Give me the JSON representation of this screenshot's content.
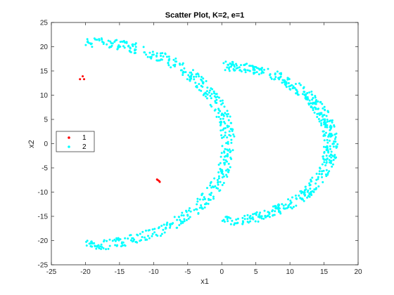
{
  "chart_data": {
    "type": "scatter",
    "title": "Scatter Plot, K=2, e=1",
    "xlabel": "x1",
    "ylabel": "x2",
    "xlim": [
      -25,
      20
    ],
    "ylim": [
      -25,
      25
    ],
    "xticks": [
      -25,
      -20,
      -15,
      -10,
      -5,
      0,
      5,
      10,
      15,
      20
    ],
    "yticks": [
      -25,
      -20,
      -15,
      -10,
      -5,
      0,
      5,
      10,
      15,
      20,
      25
    ],
    "grid": false,
    "legend_position": "left",
    "series": [
      {
        "name": "1",
        "color": "#ff0000",
        "points": [
          [
            -20.4,
            13.9
          ],
          [
            -20.8,
            13.3
          ],
          [
            -20.2,
            13.3
          ],
          [
            -9.4,
            -7.5
          ],
          [
            -9.2,
            -7.7
          ],
          [
            -9.1,
            -7.9
          ],
          [
            -9.5,
            -7.4
          ]
        ]
      },
      {
        "name": "2",
        "color": "#00ffff",
        "generator": {
          "count": 1000,
          "arcs": [
            {
              "cx": 0,
              "cy": 0,
              "r_outer": 17,
              "r_inner": 15
            },
            {
              "cx": -20,
              "cy": 0,
              "r_outer": 22,
              "r_inner": 20
            }
          ],
          "note_x_range": [
            -22,
            17
          ],
          "y_range": [
            -23,
            23
          ]
        }
      }
    ]
  }
}
